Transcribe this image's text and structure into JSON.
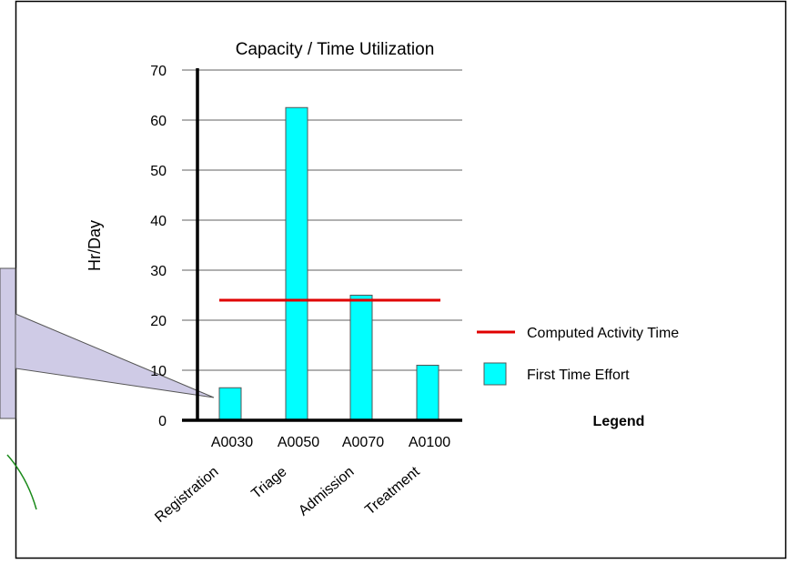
{
  "chart_data": {
    "type": "bar",
    "title": "Capacity / Time Utilization",
    "ylabel": "Hr/Day",
    "xlabel": "",
    "ylim": [
      0,
      70
    ],
    "yticks": [
      0,
      10,
      20,
      30,
      40,
      50,
      60,
      70
    ],
    "grid": true,
    "categories": [
      "A0030",
      "A0050",
      "A0070",
      "A0100"
    ],
    "category_names": [
      "Registration",
      "Triage",
      "Admission",
      "Treatment"
    ],
    "series": [
      {
        "name": "First Time Effort",
        "values": [
          6.5,
          62.5,
          25,
          11
        ],
        "color": "#00ffff"
      }
    ],
    "reference_line": {
      "name": "Computed Activity Time",
      "value": 24,
      "color": "#e00000"
    },
    "legend_title": "Legend",
    "legend_position": "right"
  },
  "colors": {
    "frame": "#000000",
    "callout_fill": "#cfcbe6",
    "gridline": "#808080",
    "curve": "#1a8a1a"
  }
}
